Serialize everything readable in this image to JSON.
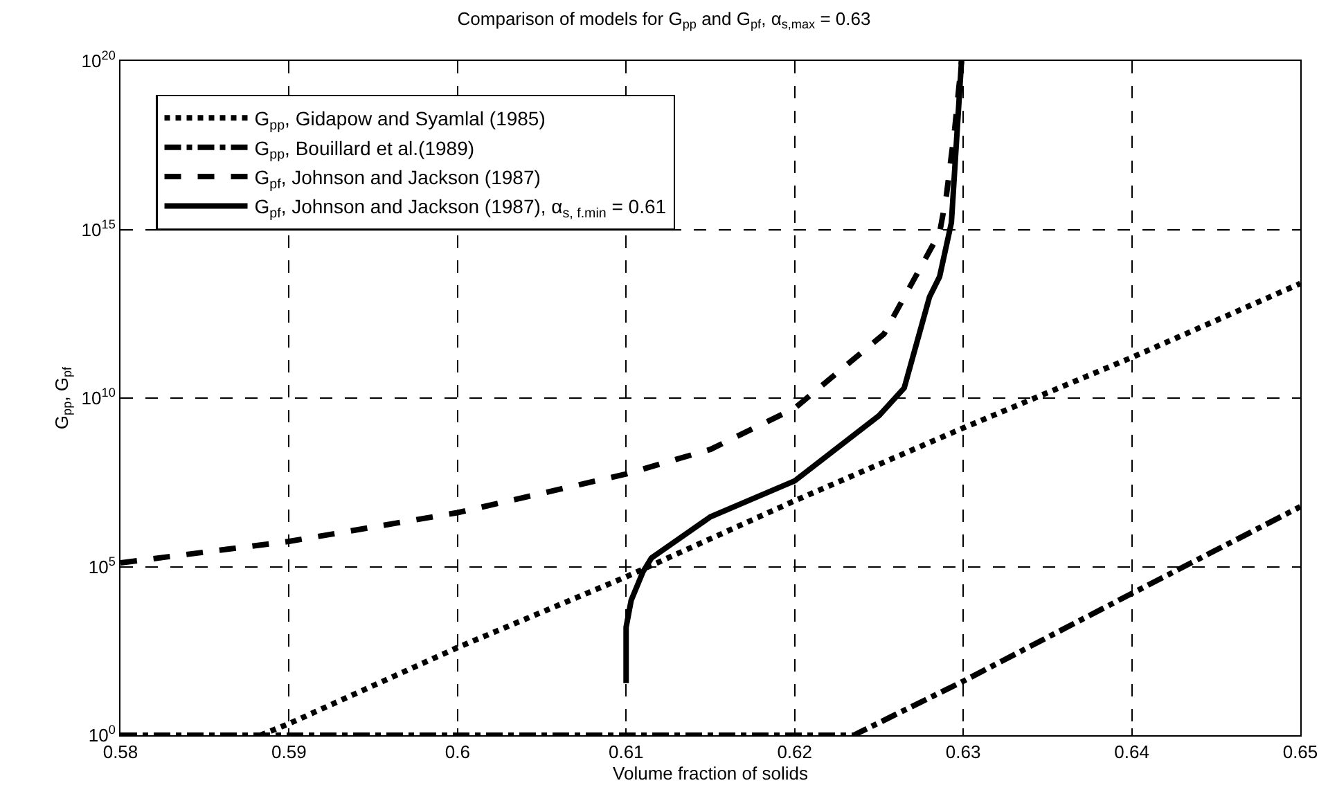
{
  "chart_data": {
    "type": "line",
    "title": "Comparison of models for G$_{pp}$ and G$_{pf}$, α$_{s,max}$ = 0.63",
    "xlabel": "Volume fraction of solids",
    "ylabel": "G$_{pp}$, G$_{pf}$",
    "log": "y",
    "grid": true,
    "legend": "top left",
    "marker": "none",
    "xlim": [
      0.58,
      0.65
    ],
    "xticks": [
      0.58,
      0.59,
      0.6,
      0.61,
      0.62,
      0.63,
      0.64,
      0.65
    ],
    "ylim": [
      1,
      1e+20
    ],
    "yticks": [
      {
        "value": 1,
        "label": "10$^{0}$"
      },
      {
        "value": 100000.0,
        "label": "10$^{5}$"
      },
      {
        "value": 10000000000.0,
        "label": "10$^{10}$"
      },
      {
        "value": 1000000000000000.0,
        "label": "10$^{15}$"
      },
      {
        "value": 1e+20,
        "label": "10$^{20}$"
      }
    ],
    "series": [
      {
        "name": "G$_{pp}$, Gidapow and Syamlal (1985)",
        "color": "#000000",
        "line_style": "dotted",
        "x": [
          0.5883,
          0.59,
          0.6,
          0.61,
          0.62,
          0.63,
          0.64,
          0.65
        ],
        "values": [
          1,
          2.2,
          400,
          50000,
          9000000,
          1300000000,
          160000000000,
          25000000000000
        ]
      },
      {
        "name": "G$_{pp}$, Bouillard et al.(1989)",
        "color": "#000000",
        "line_style": "dashdot",
        "x": [
          0.58,
          0.6235,
          0.63,
          0.64,
          0.65
        ],
        "values": [
          1,
          1,
          40,
          16000,
          6000000
        ]
      },
      {
        "name": "G$_{pf}$, Johnson and Jackson (1987)",
        "color": "#000000",
        "line_style": "dashed",
        "x": [
          0.58,
          0.59,
          0.6,
          0.61,
          0.615,
          0.62,
          0.6253,
          0.6286,
          0.629,
          0.6295,
          0.6299
        ],
        "values": [
          130000,
          560000,
          4000000,
          56000000,
          300000000,
          5000000000,
          800000000000,
          800000000000000,
          1e+16,
          1e+18,
          1e+20
        ]
      },
      {
        "name": "G$_{pf}$, Johnson and Jackson (1987), α$_{s, f.min}$ = 0.61",
        "color": "#000000",
        "line_style": "solid",
        "x": [
          0.61,
          0.61,
          0.6103,
          0.611,
          0.6115,
          0.615,
          0.62,
          0.625,
          0.6265,
          0.628,
          0.6286,
          0.6293,
          0.6299
        ],
        "values": [
          35,
          1600,
          10000,
          70000,
          180000,
          3000000,
          35000000,
          3000000000,
          20000000000,
          10000000000000.0,
          40000000000000.0,
          1600000000000000.0,
          1e+20
        ]
      }
    ]
  }
}
